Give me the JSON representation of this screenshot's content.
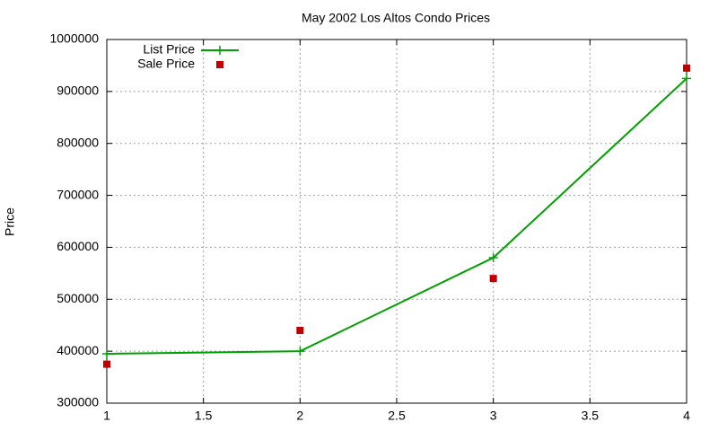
{
  "chart_data": {
    "type": "line",
    "title": "May 2002 Los Altos Condo Prices",
    "y_label": "Price",
    "x": [
      1,
      2,
      3,
      4
    ],
    "series": [
      {
        "name": "List Price",
        "color": "#00a000",
        "values": [
          395000,
          400000,
          580000,
          925000
        ],
        "style": "linespoints"
      },
      {
        "name": "Sale Price",
        "color": "#c00000",
        "values": [
          375000,
          440000,
          540000,
          945000
        ],
        "style": "points"
      }
    ],
    "xlim": [
      1,
      4
    ],
    "xticks": [
      1,
      1.5,
      2,
      2.5,
      3,
      3.5,
      4
    ],
    "ylim": [
      300000,
      1000000
    ],
    "yticks": [
      300000,
      400000,
      500000,
      600000,
      700000,
      800000,
      900000,
      1000000
    ],
    "grid": true,
    "legend": "top-left"
  }
}
